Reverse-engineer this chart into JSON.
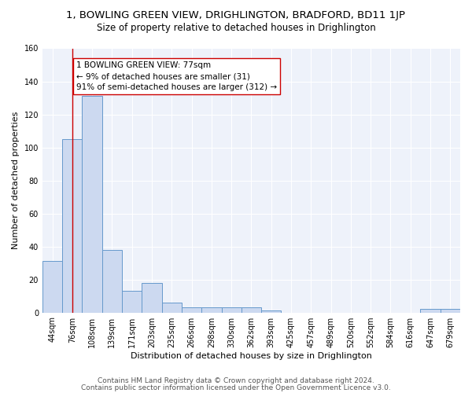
{
  "title": "1, BOWLING GREEN VIEW, DRIGHLINGTON, BRADFORD, BD11 1JP",
  "subtitle": "Size of property relative to detached houses in Drighlington",
  "xlabel": "Distribution of detached houses by size in Drighlington",
  "ylabel": "Number of detached properties",
  "bar_labels": [
    "44sqm",
    "76sqm",
    "108sqm",
    "139sqm",
    "171sqm",
    "203sqm",
    "235sqm",
    "266sqm",
    "298sqm",
    "330sqm",
    "362sqm",
    "393sqm",
    "425sqm",
    "457sqm",
    "489sqm",
    "520sqm",
    "552sqm",
    "584sqm",
    "616sqm",
    "647sqm",
    "679sqm"
  ],
  "bar_values": [
    31,
    105,
    131,
    38,
    13,
    18,
    6,
    3,
    3,
    3,
    3,
    1,
    0,
    0,
    0,
    0,
    0,
    0,
    0,
    2,
    2
  ],
  "bar_color": "#ccd9f0",
  "bar_edge_color": "#6699cc",
  "property_line_x": 1,
  "vline_color": "#cc0000",
  "annotation_text": "1 BOWLING GREEN VIEW: 77sqm\n← 9% of detached houses are smaller (31)\n91% of semi-detached houses are larger (312) →",
  "annotation_box_color": "#ffffff",
  "annotation_box_edge_color": "#cc0000",
  "footnote1": "Contains HM Land Registry data © Crown copyright and database right 2024.",
  "footnote2": "Contains public sector information licensed under the Open Government Licence v3.0.",
  "ylim": [
    0,
    160
  ],
  "yticks": [
    0,
    20,
    40,
    60,
    80,
    100,
    120,
    140,
    160
  ],
  "bg_color": "#ffffff",
  "plot_bg_color": "#eef2fa",
  "title_fontsize": 9.5,
  "subtitle_fontsize": 8.5,
  "axis_label_fontsize": 8,
  "tick_fontsize": 7,
  "annotation_fontsize": 7.5,
  "footnote_fontsize": 6.5
}
